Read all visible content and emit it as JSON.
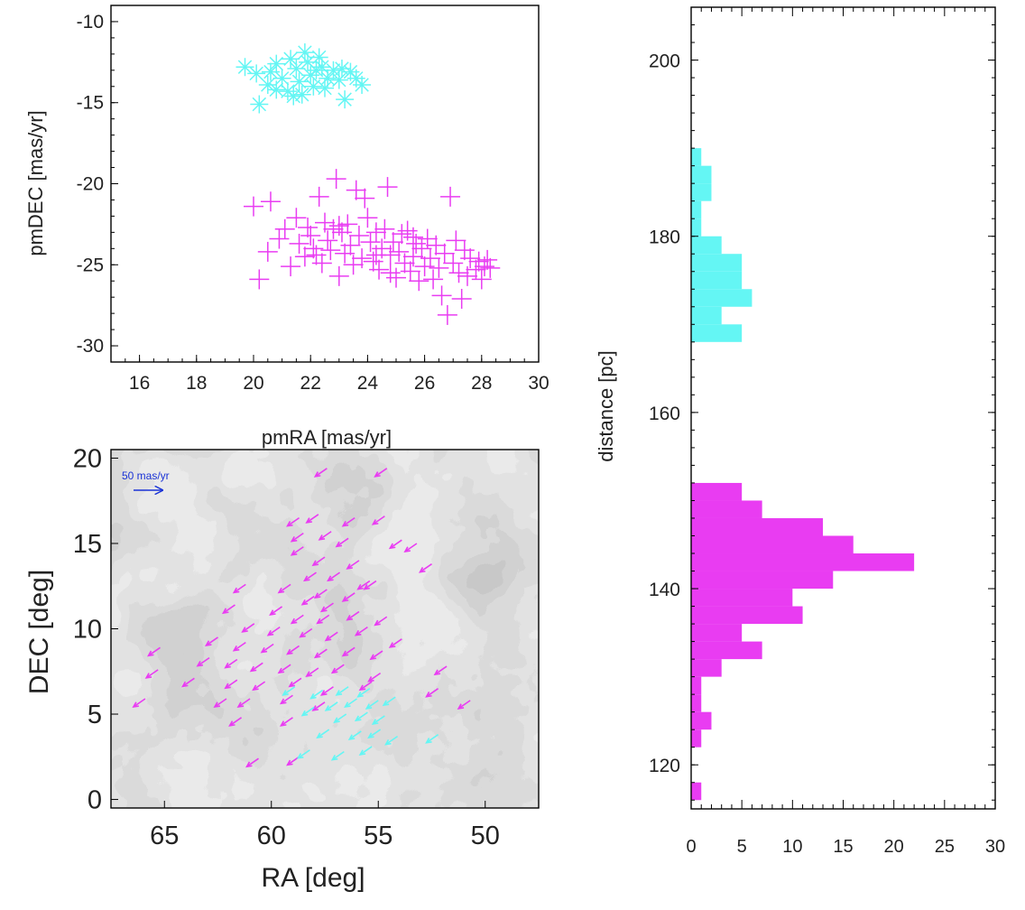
{
  "chart_data": [
    {
      "id": "pm",
      "type": "scatter",
      "xlabel": "pmRA [mas/yr]",
      "ylabel": "pmDEC [mas/yr]",
      "xlim": [
        15,
        30
      ],
      "ylim": [
        -31,
        -9
      ],
      "xticks": [
        16,
        18,
        20,
        22,
        24,
        26,
        28,
        30
      ],
      "yticks": [
        -30,
        -25,
        -20,
        -15,
        -10
      ],
      "series": [
        {
          "name": "cyan group",
          "color": "#64f6f4",
          "marker": "asterisk",
          "points": [
            [
              19.7,
              -12.8
            ],
            [
              20.1,
              -13.2
            ],
            [
              20.5,
              -13.9
            ],
            [
              20.2,
              -15.1
            ],
            [
              20.8,
              -12.6
            ],
            [
              21.0,
              -13.5
            ],
            [
              21.2,
              -14.3
            ],
            [
              21.3,
              -12.3
            ],
            [
              21.5,
              -12.9
            ],
            [
              21.6,
              -13.7
            ],
            [
              21.8,
              -11.9
            ],
            [
              21.9,
              -12.5
            ],
            [
              22.0,
              -13.3
            ],
            [
              22.1,
              -14.0
            ],
            [
              22.3,
              -12.2
            ],
            [
              22.4,
              -12.8
            ],
            [
              22.6,
              -13.5
            ],
            [
              22.8,
              -13.0
            ],
            [
              23.0,
              -13.6
            ],
            [
              23.2,
              -14.8
            ],
            [
              23.4,
              -13.1
            ],
            [
              23.6,
              -13.5
            ],
            [
              23.8,
              -13.9
            ],
            [
              21.4,
              -14.6
            ],
            [
              22.5,
              -14.1
            ],
            [
              20.8,
              -14.2
            ],
            [
              21.7,
              -14.5
            ],
            [
              22.2,
              -13.0
            ],
            [
              23.1,
              -12.9
            ],
            [
              20.6,
              -13.1
            ]
          ]
        },
        {
          "name": "magenta group",
          "color": "#e93cf2",
          "marker": "plus",
          "points": [
            [
              20.0,
              -21.4
            ],
            [
              20.2,
              -25.9
            ],
            [
              20.5,
              -24.2
            ],
            [
              20.6,
              -21.1
            ],
            [
              20.9,
              -23.4
            ],
            [
              21.1,
              -22.8
            ],
            [
              21.3,
              -25.1
            ],
            [
              21.5,
              -22.1
            ],
            [
              21.6,
              -23.7
            ],
            [
              21.8,
              -24.5
            ],
            [
              21.9,
              -22.7
            ],
            [
              22.0,
              -23.2
            ],
            [
              22.1,
              -24.0
            ],
            [
              22.3,
              -20.8
            ],
            [
              22.4,
              -24.9
            ],
            [
              22.5,
              -22.4
            ],
            [
              22.6,
              -23.5
            ],
            [
              22.7,
              -24.1
            ],
            [
              22.8,
              -22.8
            ],
            [
              22.9,
              -19.7
            ],
            [
              23.0,
              -25.7
            ],
            [
              23.1,
              -23.0
            ],
            [
              23.2,
              -24.3
            ],
            [
              23.3,
              -22.5
            ],
            [
              23.4,
              -23.8
            ],
            [
              23.5,
              -25.0
            ],
            [
              23.6,
              -20.4
            ],
            [
              23.7,
              -23.2
            ],
            [
              23.8,
              -24.6
            ],
            [
              23.9,
              -20.9
            ],
            [
              24.0,
              -22.1
            ],
            [
              24.1,
              -23.6
            ],
            [
              24.2,
              -24.8
            ],
            [
              24.3,
              -23.0
            ],
            [
              24.4,
              -25.3
            ],
            [
              24.5,
              -24.0
            ],
            [
              24.6,
              -22.8
            ],
            [
              24.7,
              -20.2
            ],
            [
              24.8,
              -24.4
            ],
            [
              24.9,
              -23.6
            ],
            [
              25.0,
              -25.8
            ],
            [
              25.1,
              -24.2
            ],
            [
              25.2,
              -23.1
            ],
            [
              25.3,
              -24.9
            ],
            [
              25.4,
              -22.9
            ],
            [
              25.5,
              -25.4
            ],
            [
              25.6,
              -24.5
            ],
            [
              25.7,
              -23.7
            ],
            [
              25.8,
              -26.0
            ],
            [
              25.9,
              -24.0
            ],
            [
              26.0,
              -25.1
            ],
            [
              26.1,
              -23.4
            ],
            [
              26.2,
              -24.6
            ],
            [
              26.3,
              -25.9
            ],
            [
              26.4,
              -23.8
            ],
            [
              26.5,
              -25.2
            ],
            [
              26.6,
              -26.9
            ],
            [
              26.7,
              -24.3
            ],
            [
              26.8,
              -28.1
            ],
            [
              26.9,
              -20.8
            ],
            [
              27.0,
              -24.9
            ],
            [
              27.1,
              -23.5
            ],
            [
              27.2,
              -25.5
            ],
            [
              27.3,
              -27.1
            ],
            [
              27.4,
              -24.1
            ],
            [
              27.5,
              -25.7
            ],
            [
              27.6,
              -24.6
            ],
            [
              27.8,
              -25.3
            ],
            [
              27.9,
              -24.8
            ],
            [
              28.0,
              -25.9
            ],
            [
              28.1,
              -25.1
            ],
            [
              28.2,
              -24.7
            ],
            [
              28.3,
              -25.2
            ],
            [
              24.3,
              -24.4
            ],
            [
              25.6,
              -23.3
            ],
            [
              23.0,
              -22.6
            ],
            [
              22.2,
              -24.4
            ],
            [
              24.8,
              -25.5
            ]
          ]
        }
      ]
    },
    {
      "id": "sky",
      "type": "vector-map",
      "xlabel": "RA [deg]",
      "ylabel": "DEC [deg]",
      "xlim": [
        67.5,
        47.5
      ],
      "ylim": [
        -0.5,
        20.5
      ],
      "xticks": [
        65,
        60,
        55,
        50
      ],
      "yticks": [
        0,
        5,
        10,
        15,
        20
      ],
      "scale_label": "50 mas/yr",
      "scale_color": "#1a33d6",
      "series": [
        {
          "name": "magenta group",
          "color": "#e93cf2",
          "points": [
            [
              57.4,
              19.4
            ],
            [
              54.6,
              19.4
            ],
            [
              58.7,
              16.5
            ],
            [
              57.8,
              16.7
            ],
            [
              56.1,
              16.5
            ],
            [
              54.7,
              16.6
            ],
            [
              58.5,
              15.6
            ],
            [
              57.2,
              15.7
            ],
            [
              56.4,
              15.3
            ],
            [
              53.9,
              15.2
            ],
            [
              53.2,
              15.0
            ],
            [
              58.5,
              14.8
            ],
            [
              57.5,
              14.2
            ],
            [
              55.9,
              14.0
            ],
            [
              52.5,
              13.8
            ],
            [
              57.9,
              13.3
            ],
            [
              56.8,
              13.3
            ],
            [
              55.4,
              12.8
            ],
            [
              61.2,
              12.6
            ],
            [
              59.1,
              12.6
            ],
            [
              57.4,
              12.3
            ],
            [
              56.1,
              12.1
            ],
            [
              55.1,
              12.8
            ],
            [
              58.0,
              11.9
            ],
            [
              57.1,
              11.5
            ],
            [
              61.7,
              11.4
            ],
            [
              59.5,
              11.3
            ],
            [
              58.5,
              10.8
            ],
            [
              57.3,
              10.8
            ],
            [
              55.9,
              11.0
            ],
            [
              54.6,
              10.7
            ],
            [
              60.8,
              10.3
            ],
            [
              59.6,
              10.1
            ],
            [
              58.1,
              10.0
            ],
            [
              56.9,
              9.8
            ],
            [
              55.5,
              10.1
            ],
            [
              53.9,
              9.4
            ],
            [
              62.5,
              9.5
            ],
            [
              61.2,
              9.2
            ],
            [
              59.9,
              9.1
            ],
            [
              58.7,
              9.0
            ],
            [
              57.4,
              8.8
            ],
            [
              56.1,
              8.9
            ],
            [
              54.8,
              8.7
            ],
            [
              65.2,
              8.9
            ],
            [
              62.9,
              8.3
            ],
            [
              61.6,
              8.2
            ],
            [
              60.4,
              8.0
            ],
            [
              59.1,
              7.9
            ],
            [
              57.8,
              7.7
            ],
            [
              56.6,
              7.9
            ],
            [
              54.9,
              7.4
            ],
            [
              51.8,
              7.8
            ],
            [
              65.3,
              7.6
            ],
            [
              63.6,
              7.1
            ],
            [
              61.6,
              7.0
            ],
            [
              60.3,
              6.9
            ],
            [
              58.6,
              7.1
            ],
            [
              57.1,
              6.6
            ],
            [
              55.3,
              6.9
            ],
            [
              52.2,
              6.5
            ],
            [
              65.9,
              5.9
            ],
            [
              62.1,
              5.9
            ],
            [
              61.0,
              5.9
            ],
            [
              59.0,
              6.1
            ],
            [
              57.5,
              5.7
            ],
            [
              50.7,
              5.8
            ],
            [
              61.4,
              4.8
            ],
            [
              59.0,
              4.8
            ],
            [
              60.6,
              2.4
            ],
            [
              58.7,
              2.5
            ]
          ]
        },
        {
          "name": "cyan group",
          "color": "#64f6f4",
          "points": [
            [
              58.9,
              6.6
            ],
            [
              57.6,
              6.4
            ],
            [
              56.4,
              6.6
            ],
            [
              55.4,
              6.5
            ],
            [
              56.9,
              5.7
            ],
            [
              56.0,
              5.9
            ],
            [
              55.0,
              5.8
            ],
            [
              54.2,
              6.0
            ],
            [
              58.0,
              5.4
            ],
            [
              56.5,
              5.0
            ],
            [
              55.5,
              5.1
            ],
            [
              54.7,
              4.9
            ],
            [
              57.3,
              4.1
            ],
            [
              55.8,
              4.0
            ],
            [
              54.9,
              4.1
            ],
            [
              54.1,
              3.7
            ],
            [
              52.2,
              3.8
            ],
            [
              58.2,
              2.9
            ],
            [
              56.6,
              2.8
            ],
            [
              55.3,
              3.1
            ]
          ]
        }
      ]
    },
    {
      "id": "dist",
      "type": "bar",
      "orientation": "horizontal",
      "ylabel": "distance [pc]",
      "xlabel": "",
      "xlim": [
        0,
        30
      ],
      "ylim": [
        115,
        206
      ],
      "xticks": [
        0,
        5,
        10,
        15,
        20,
        25,
        30
      ],
      "yticks": [
        120,
        140,
        160,
        180,
        200
      ],
      "bin_width": 2,
      "series": [
        {
          "name": "magenta group",
          "color": "#e93cf2",
          "bins": [
            [
              117,
              1
            ],
            [
              119,
              0
            ],
            [
              121,
              0
            ],
            [
              123,
              1
            ],
            [
              125,
              2
            ],
            [
              127,
              1
            ],
            [
              129,
              1
            ],
            [
              131,
              3
            ],
            [
              133,
              7
            ],
            [
              135,
              5
            ],
            [
              137,
              11
            ],
            [
              139,
              10
            ],
            [
              141,
              14
            ],
            [
              143,
              22
            ],
            [
              145,
              16
            ],
            [
              147,
              13
            ],
            [
              149,
              7
            ],
            [
              151,
              5
            ]
          ]
        },
        {
          "name": "cyan group",
          "color": "#64f6f4",
          "bins": [
            [
              169,
              5
            ],
            [
              171,
              3
            ],
            [
              173,
              6
            ],
            [
              175,
              5
            ],
            [
              177,
              5
            ],
            [
              179,
              3
            ],
            [
              181,
              1
            ],
            [
              183,
              1
            ],
            [
              185,
              2
            ],
            [
              187,
              2
            ],
            [
              189,
              1
            ]
          ]
        }
      ]
    }
  ]
}
